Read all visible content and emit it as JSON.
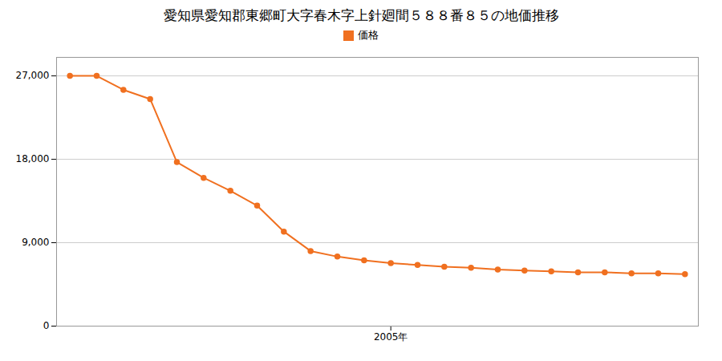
{
  "chart_data": {
    "type": "line",
    "title": "愛知県愛知郡東郷町大字春木字上針廻間５８８番８５の地価推移",
    "x": [
      1993,
      1994,
      1995,
      1996,
      1997,
      1998,
      1999,
      2000,
      2001,
      2002,
      2003,
      2004,
      2005,
      2006,
      2007,
      2008,
      2009,
      2010,
      2011,
      2012,
      2013,
      2014,
      2015,
      2016
    ],
    "series": [
      {
        "name": "価格",
        "color": "#f07020",
        "marker": "o",
        "values": [
          27000,
          27000,
          25500,
          24500,
          17700,
          16000,
          14600,
          13000,
          10200,
          8100,
          7500,
          7100,
          6800,
          6600,
          6400,
          6300,
          6100,
          6000,
          5900,
          5800,
          5800,
          5700,
          5700,
          5600
        ]
      }
    ],
    "xlim": [
      1992.5,
      2016.5
    ],
    "xticks": [
      {
        "value": 2005,
        "label": "2005年"
      }
    ],
    "ylim": [
      0,
      29000
    ],
    "yticks": [
      0,
      {
        "value": 9000,
        "label": "9,000"
      },
      {
        "value": 18000,
        "label": "18,000"
      },
      {
        "value": 27000,
        "label": "27,000"
      }
    ],
    "grid": "y",
    "legend": "top"
  }
}
